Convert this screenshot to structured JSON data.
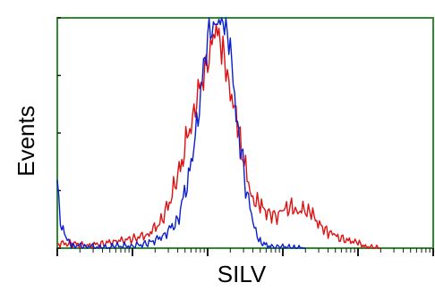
{
  "chart_data": {
    "type": "line",
    "title": "",
    "xlabel": "SILV",
    "ylabel": "Events",
    "x_scale": "log",
    "xlim": [
      1,
      100000
    ],
    "ylim": [
      0,
      100
    ],
    "grid": false,
    "legend": "none",
    "colors": {
      "frame": "#2e8b2e",
      "ticks": "#1a1a1a"
    },
    "series": [
      {
        "color": "#dd1111",
        "x": [
          1.0,
          1.6,
          2.5,
          4.0,
          6.3,
          10,
          16,
          25,
          40,
          63,
          100,
          130,
          160,
          200,
          250,
          320,
          400,
          500,
          630,
          800,
          1000,
          1260,
          1580,
          2000,
          2500,
          3200,
          4000,
          5000,
          6300,
          8000,
          10000,
          12600,
          15800,
          20000
        ],
        "y": [
          2,
          2,
          1,
          2,
          3,
          4,
          6,
          12,
          30,
          58,
          82,
          94,
          86,
          70,
          52,
          34,
          22,
          18,
          16,
          14,
          16,
          18,
          17,
          16,
          14,
          10,
          7,
          5,
          4,
          3,
          2,
          1,
          0,
          0
        ]
      },
      {
        "color": "#0b1fcc",
        "x": [
          1.0,
          1.1,
          1.3,
          1.6,
          2.5,
          4.0,
          6.3,
          10,
          16,
          25,
          40,
          63,
          100,
          130,
          160,
          200,
          250,
          320,
          400,
          500,
          630,
          800,
          1000,
          1260,
          1580,
          2000
        ],
        "y": [
          30,
          12,
          4,
          1,
          1,
          0,
          1,
          1,
          2,
          5,
          12,
          38,
          92,
          100,
          100,
          85,
          55,
          28,
          10,
          3,
          1,
          0,
          1,
          0,
          0,
          0
        ]
      }
    ]
  }
}
